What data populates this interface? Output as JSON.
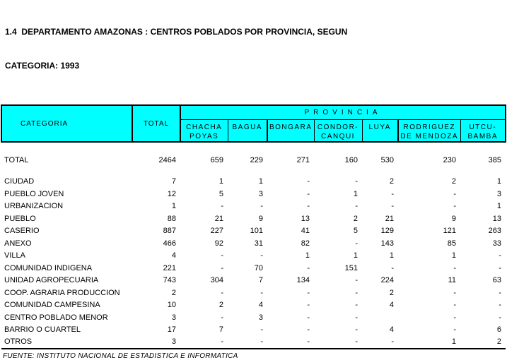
{
  "title": {
    "line1": "1.4  DEPARTAMENTO AMAZONAS : CENTROS POBLADOS POR PROVINCIA, SEGUN",
    "line2": "CATEGORIA: 1993"
  },
  "table": {
    "corner_label": "CATEGORIA",
    "total_label": "TOTAL",
    "provincia_label": "PROVINCIA",
    "provinces": [
      {
        "line1": "CHACHA",
        "line2": "POYAS"
      },
      {
        "line1": "BAGUA",
        "line2": ""
      },
      {
        "line1": "BONGARA",
        "line2": ""
      },
      {
        "line1": "CONDOR-",
        "line2": "CANQUI"
      },
      {
        "line1": "LUYA",
        "line2": ""
      },
      {
        "line1": "RODRIGUEZ",
        "line2": "DE MENDOZA"
      },
      {
        "line1": "UTCU-",
        "line2": "BAMBA"
      }
    ],
    "rows": [
      {
        "label": "TOTAL",
        "values": [
          "2464",
          "659",
          "229",
          "271",
          "160",
          "530",
          "230",
          "385"
        ]
      },
      {
        "label": "CIUDAD",
        "values": [
          "7",
          "1",
          "1",
          "-",
          "-",
          "2",
          "2",
          "1"
        ]
      },
      {
        "label": "PUEBLO JOVEN",
        "values": [
          "12",
          "5",
          "3",
          "-",
          "1",
          "-",
          "-",
          "3"
        ]
      },
      {
        "label": "URBANIZACION",
        "values": [
          "1",
          "-",
          "-",
          "-",
          "-",
          "-",
          "-",
          "1"
        ]
      },
      {
        "label": "PUEBLO",
        "values": [
          "88",
          "21",
          "9",
          "13",
          "2",
          "21",
          "9",
          "13"
        ]
      },
      {
        "label": "CASERIO",
        "values": [
          "887",
          "227",
          "101",
          "41",
          "5",
          "129",
          "121",
          "263"
        ]
      },
      {
        "label": "ANEXO",
        "values": [
          "466",
          "92",
          "31",
          "82",
          "-",
          "143",
          "85",
          "33"
        ]
      },
      {
        "label": "VILLA",
        "values": [
          "4",
          "-",
          "-",
          "1",
          "1",
          "1",
          "1",
          "-"
        ]
      },
      {
        "label": "COMUNIDAD INDIGENA",
        "values": [
          "221",
          "-",
          "70",
          "-",
          "151",
          "-",
          "-",
          "-"
        ]
      },
      {
        "label": "UNIDAD AGROPECUARIA",
        "values": [
          "743",
          "304",
          "7",
          "134",
          "-",
          "224",
          "11",
          "63"
        ]
      },
      {
        "label": "COOP. AGRARIA PRODUCCION",
        "values": [
          "2",
          "-",
          "-",
          "-",
          "-",
          "2",
          "-",
          "-"
        ]
      },
      {
        "label": "COMUNIDAD CAMPESINA",
        "values": [
          "10",
          "2",
          "4",
          "-",
          "-",
          "4",
          "-",
          "-"
        ]
      },
      {
        "label": "CENTRO POBLADO MENOR",
        "values": [
          "3",
          "-",
          "3",
          "-",
          "-",
          "",
          "-",
          "-"
        ]
      },
      {
        "label": "BARRIO O CUARTEL",
        "values": [
          "17",
          "7",
          "-",
          "-",
          "-",
          "4",
          "-",
          "6"
        ]
      },
      {
        "label": "OTROS",
        "values": [
          "3",
          "-",
          "-",
          "-",
          "-",
          "-",
          "1",
          "2"
        ]
      }
    ]
  },
  "footer": {
    "source": "FUENTE: INSTITUTO NACIONAL DE ESTADISTICA E INFORMATICA"
  },
  "colors": {
    "header_bg": "#00ffff",
    "border": "#000000",
    "text": "#000000"
  }
}
